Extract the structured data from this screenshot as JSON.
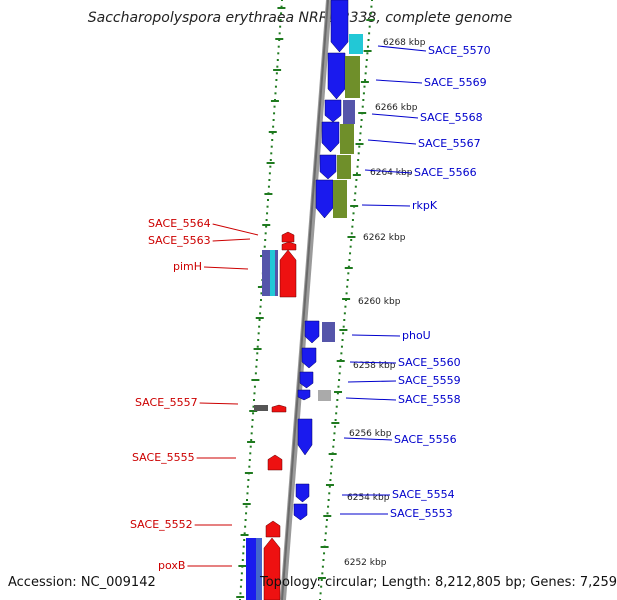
{
  "title": "Saccharopolyspora erythraea NRRL 2338, complete genome",
  "footer": {
    "accession": "Accession: NC_009142",
    "topology": "Topology: circular; Length: 8,212,805 bp; Genes: 7,259"
  },
  "colors": {
    "forward_gene": "#1a1aee",
    "reverse_gene": "#ee1111",
    "backbone": "#808080",
    "tick": "#1f7a1f",
    "label_blue": "#0000cc",
    "label_red": "#cc0000",
    "cyan": "#22c8d6",
    "olive": "#6f8f2a",
    "slate": "#5555aa",
    "grey": "#aaaaaa"
  },
  "kbp_markers": [
    "6268 kbp",
    "6266 kbp",
    "6264 kbp",
    "6262 kbp",
    "6260 kbp",
    "6258 kbp",
    "6256 kbp",
    "6254 kbp",
    "6252 kbp"
  ],
  "genes_right": [
    "SACE_5570",
    "SACE_5569",
    "SACE_5568",
    "SACE_5567",
    "SACE_5566",
    "rkpK",
    "phoU",
    "SACE_5560",
    "SACE_5559",
    "SACE_5558",
    "SACE_5556",
    "SACE_5554",
    "SACE_5553"
  ],
  "genes_left": [
    "SACE_5564",
    "SACE_5563",
    "pimH",
    "SACE_5557",
    "SACE_5555",
    "SACE_5552",
    "poxB"
  ]
}
